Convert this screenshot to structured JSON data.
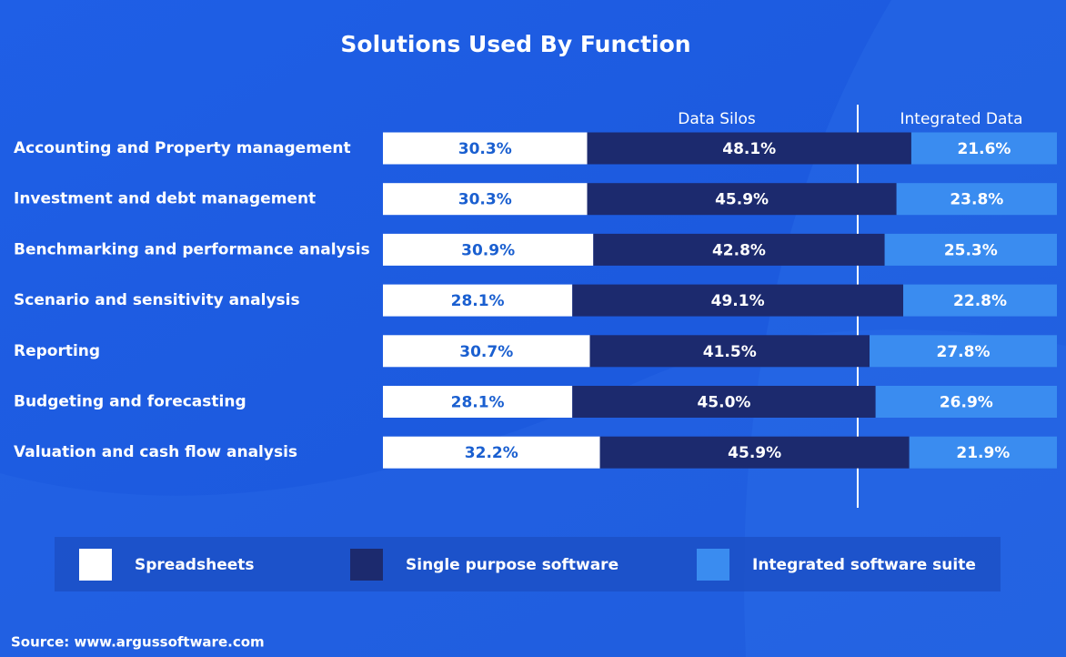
{
  "chart_data": {
    "type": "stacked_bar",
    "orientation": "horizontal",
    "title": "Solutions Used By Function",
    "annotations": [
      "Data Silos",
      "Integrated Data"
    ],
    "categories": [
      "Accounting and Property management",
      "Investment and debt management",
      "Benchmarking and performance analysis",
      "Scenario and sensitivity analysis",
      "Reporting",
      "Budgeting and forecasting",
      "Valuation and cash flow analysis"
    ],
    "series": [
      {
        "name": "Spreadsheets",
        "color": "#ffffff",
        "values": [
          30.3,
          30.3,
          30.9,
          28.1,
          30.7,
          28.1,
          32.2
        ],
        "value_labels": [
          "30.3%",
          "30.3%",
          "30.9%",
          "28.1%",
          "30.7%",
          "28.1%",
          "32.2%"
        ]
      },
      {
        "name": "Single purpose software",
        "color": "#1c2a6e",
        "values": [
          48.1,
          45.9,
          42.8,
          49.1,
          41.5,
          45.0,
          45.9
        ],
        "value_labels": [
          "48.1%",
          "45.9%",
          "42.8%",
          "49.1%",
          "41.5%",
          "45.0%",
          "45.9%"
        ]
      },
      {
        "name": "Integrated software suite",
        "color": "#3a8cf0",
        "values": [
          21.6,
          23.8,
          25.3,
          22.8,
          27.8,
          26.9,
          21.9
        ],
        "value_labels": [
          "21.6%",
          "23.8%",
          "25.3%",
          "22.8%",
          "27.8%",
          "26.9%",
          "21.9%"
        ]
      }
    ],
    "source": "Source: www.argussoftware.com"
  }
}
